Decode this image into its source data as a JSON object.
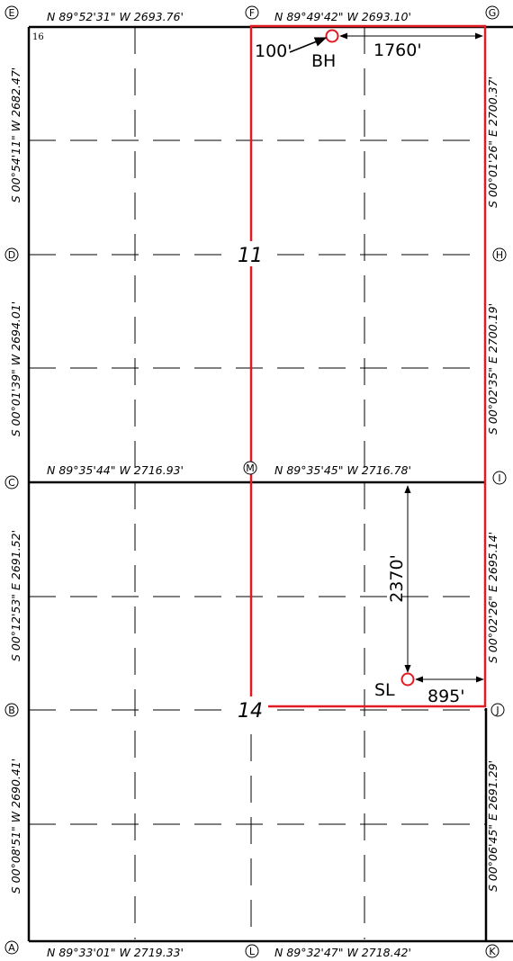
{
  "corner_labels": {
    "A": "A",
    "B": "B",
    "C": "C",
    "D": "D",
    "E": "E",
    "F": "F",
    "G": "G",
    "H": "H",
    "I": "I",
    "J": "J",
    "K": "K",
    "L": "L",
    "M": "M"
  },
  "bearings": {
    "top_left": "N 89°52'31\" W 2693.76'",
    "top_right": "N 89°49'42\" W 2693.10'",
    "mid_left": "N 89°35'44\" W 2716.93'",
    "mid_right": "N 89°35'45\" W 2716.78'",
    "bottom_left": "N 89°33'01\" W 2719.33'",
    "bottom_right": "N 89°32'47\" W 2718.42'",
    "left_upper": "S 00°54'11\" W 2682.47'",
    "left_mid_upper": "S 00°01'39\" W 2694.01'",
    "left_mid_lower": "S 00°12'53\" E 2691.52'",
    "left_lower": "S 00°08'51\" W 2690.41'",
    "right_upper": "S 00°01'26\" E 2700.37'",
    "right_mid_upper": "S 00°02'35\" E 2700.19'",
    "right_mid_lower": "S 00°02'26\" E 2695.14'",
    "right_lower": "S 00°06'45\" E 2691.29'"
  },
  "sections": {
    "upper": "11",
    "lower": "14",
    "corner_number": "16"
  },
  "points": {
    "bottom_hole": "BH",
    "surface_location": "SL"
  },
  "dimensions": {
    "bh_north": "100'",
    "bh_east": "1760'",
    "sl_north": "2370'",
    "sl_east": "895'"
  },
  "colors": {
    "lines": "#000000",
    "lease_outline": "#e11b22"
  }
}
